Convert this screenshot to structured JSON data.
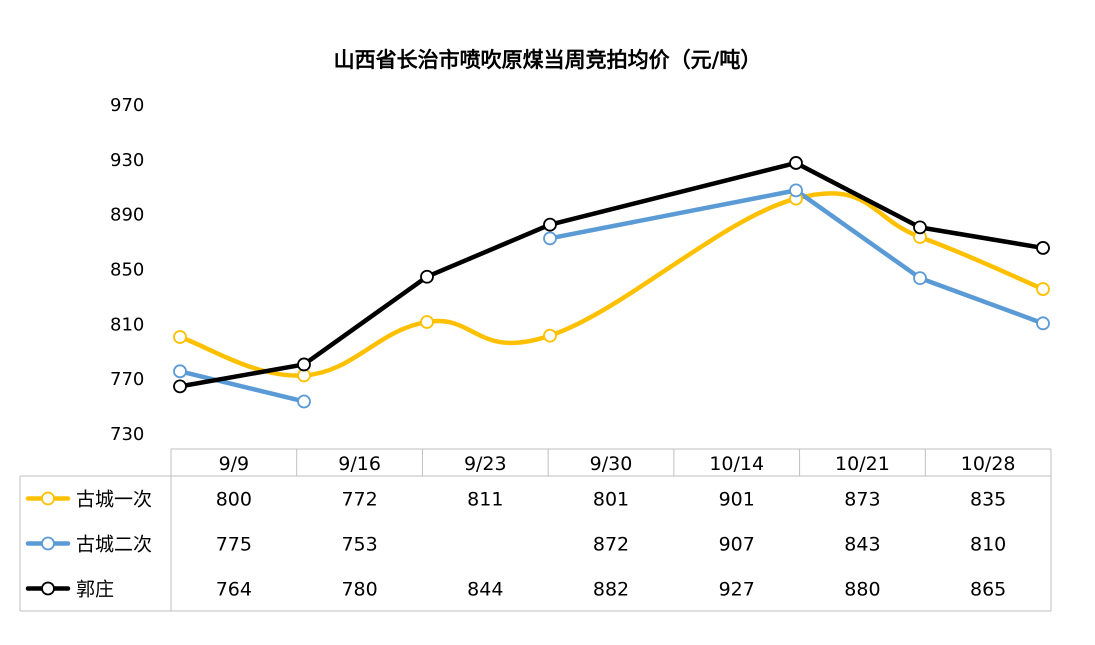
{
  "title": "山西省长治市喷吹原煤当周竞拍均价（元/吨）",
  "chart_data": {
    "type": "line",
    "title": "山西省长治市喷吹原煤当周竞拍均价（元/吨）",
    "categories": [
      "9/9",
      "9/16",
      "9/23",
      "9/30",
      "10/14",
      "10/21",
      "10/28"
    ],
    "y_ticks": [
      730,
      770,
      810,
      850,
      890,
      930,
      970
    ],
    "ylim": [
      730,
      970
    ],
    "grid": false,
    "legend": "data-table",
    "series": [
      {
        "name": "古城一次",
        "color": "#FFC000",
        "smooth": true,
        "values": [
          800,
          772,
          811,
          801,
          901,
          873,
          835
        ]
      },
      {
        "name": "古城二次",
        "color": "#5B9BD5",
        "smooth": false,
        "values": [
          775,
          753,
          null,
          872,
          907,
          843,
          810
        ]
      },
      {
        "name": "郭庄",
        "color": "#000000",
        "smooth": false,
        "values": [
          764,
          780,
          844,
          882,
          927,
          880,
          865
        ]
      }
    ]
  }
}
